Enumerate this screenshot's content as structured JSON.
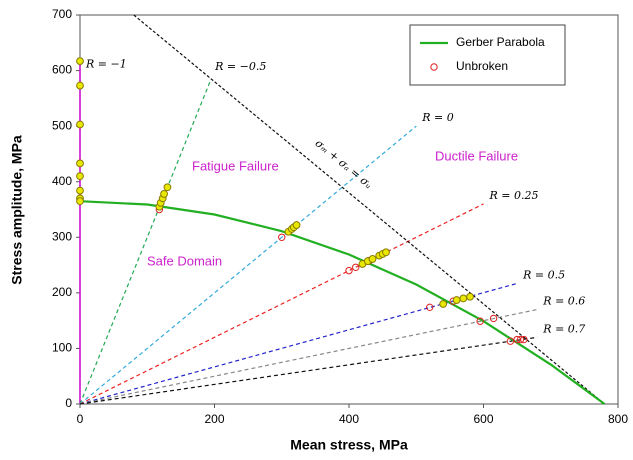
{
  "chart_data": {
    "type": "scatter",
    "xlabel": "Mean stress, MPa",
    "ylabel": "Stress amplitude, MPa",
    "xlim": [
      0,
      800
    ],
    "ylim": [
      0,
      700
    ],
    "xticks": [
      0,
      200,
      400,
      600,
      800
    ],
    "yticks": [
      0,
      100,
      200,
      300,
      400,
      500,
      600,
      700
    ],
    "legend": "upper right",
    "series": [
      {
        "name": "Gerber Parabola",
        "color": "#22b022",
        "style": "line",
        "x": [
          0,
          100,
          200,
          300,
          400,
          500,
          600,
          700,
          780
        ],
        "values": [
          365,
          359,
          341,
          311,
          269,
          215,
          149,
          71,
          0
        ]
      },
      {
        "name": "Unbroken",
        "color": "#e0201f",
        "style": "open",
        "x": [
          0,
          118,
          300,
          400,
          410,
          430,
          520,
          555,
          595,
          615,
          640,
          650,
          655,
          660
        ],
        "values": [
          368,
          350,
          300,
          240,
          246,
          258,
          174,
          185,
          149,
          154,
          113,
          116,
          116,
          116
        ]
      },
      {
        "color": "#e8e800",
        "style": "filled",
        "x": [
          0,
          0,
          0,
          0,
          0,
          0,
          0,
          0,
          118,
          120,
          123,
          125,
          130,
          310,
          315,
          318,
          322,
          420,
          428,
          435,
          445,
          450,
          455,
          540,
          560,
          570,
          580
        ],
        "values": [
          617,
          573,
          503,
          433,
          410,
          384,
          370,
          365,
          355,
          362,
          370,
          378,
          390,
          310,
          315,
          318,
          322,
          252,
          257,
          261,
          267,
          270,
          273,
          180,
          187,
          190,
          193
        ]
      }
    ],
    "ref_lines": [
      {
        "label": "R = −1",
        "color": "#cc00cc",
        "x": [
          0,
          0
        ],
        "values": [
          0,
          620
        ]
      },
      {
        "label": "R = −0.5",
        "color": "#22aa55",
        "x": [
          0,
          195
        ],
        "values": [
          0,
          585
        ]
      },
      {
        "label": "R = 0",
        "color": "#33aadd",
        "x": [
          0,
          500
        ],
        "values": [
          0,
          500
        ]
      },
      {
        "label": "R = 0.25",
        "color": "#ee2222",
        "x": [
          0,
          600
        ],
        "values": [
          0,
          360
        ]
      },
      {
        "label": "R = 0.5",
        "color": "#2222cc",
        "x": [
          0,
          650
        ],
        "values": [
          0,
          217
        ]
      },
      {
        "label": "R = 0.6",
        "color": "#888888",
        "x": [
          0,
          680
        ],
        "values": [
          0,
          170
        ]
      },
      {
        "label": "R = 0.7",
        "color": "#111111",
        "x": [
          0,
          680
        ],
        "values": [
          0,
          120
        ]
      }
    ],
    "goodman": {
      "label": "σₘ + σₐ = σᵤ",
      "color": "#111111",
      "x": [
        80,
        780
      ],
      "values": [
        700,
        0
      ]
    },
    "annotations": [
      "Fatigue Failure",
      "Ductile Failure",
      "Safe Domain"
    ]
  }
}
